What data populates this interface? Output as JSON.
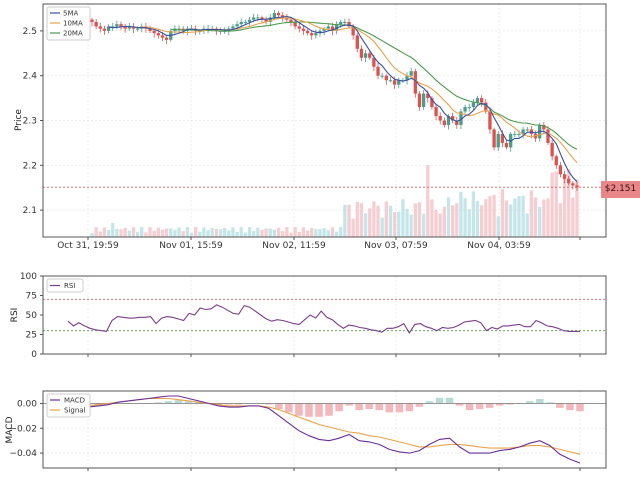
{
  "chart_data": [
    {
      "type": "candlestick",
      "panel": "price",
      "ylabel": "Price",
      "ylim": [
        2.04,
        2.56
      ],
      "yticks": [
        2.1,
        2.2,
        2.3,
        2.4,
        2.5
      ],
      "xticks": [
        "Oct 31, 19:59",
        "Nov 01, 15:59",
        "Nov 02, 11:59",
        "Nov 03, 07:59",
        "Nov 04, 03:59"
      ],
      "legend": [
        "5MA",
        "10MA",
        "20MA"
      ],
      "grid": true,
      "current_price": 2.151,
      "current_price_label": "$2.151",
      "series": [
        {
          "name": "close",
          "values": [
            2.52,
            2.51,
            2.505,
            2.5,
            2.51,
            2.51,
            2.515,
            2.51,
            2.505,
            2.51,
            2.505,
            2.505,
            2.51,
            2.505,
            2.5,
            2.495,
            2.49,
            2.485,
            2.48,
            2.5,
            2.505,
            2.505,
            2.5,
            2.505,
            2.505,
            2.5,
            2.5,
            2.505,
            2.505,
            2.505,
            2.5,
            2.5,
            2.5,
            2.505,
            2.51,
            2.515,
            2.52,
            2.52,
            2.525,
            2.53,
            2.53,
            2.525,
            2.52,
            2.53,
            2.54,
            2.535,
            2.53,
            2.525,
            2.52,
            2.51,
            2.505,
            2.5,
            2.495,
            2.49,
            2.495,
            2.5,
            2.505,
            2.51,
            2.5,
            2.515,
            2.52,
            2.52,
            2.51,
            2.49,
            2.46,
            2.44,
            2.45,
            2.44,
            2.42,
            2.4,
            2.4,
            2.39,
            2.39,
            2.38,
            2.39,
            2.39,
            2.4,
            2.41,
            2.36,
            2.33,
            2.36,
            2.35,
            2.33,
            2.31,
            2.3,
            2.29,
            2.31,
            2.3,
            2.29,
            2.32,
            2.33,
            2.33,
            2.34,
            2.35,
            2.34,
            2.32,
            2.28,
            2.24,
            2.27,
            2.25,
            2.24,
            2.27,
            2.27,
            2.27,
            2.28,
            2.28,
            2.27,
            2.26,
            2.29,
            2.28,
            2.25,
            2.22,
            2.2,
            2.18,
            2.17,
            2.16,
            2.155,
            2.151
          ]
        },
        {
          "name": "5MA",
          "color": "#3b4fa0"
        },
        {
          "name": "10MA",
          "color": "#e8a24a"
        },
        {
          "name": "20MA",
          "color": "#4d9a4d"
        }
      ]
    },
    {
      "type": "line",
      "panel": "rsi",
      "ylabel": "RSI",
      "ylim": [
        0,
        100
      ],
      "yticks": [
        0,
        25,
        50,
        75,
        100
      ],
      "legend": [
        "RSI"
      ],
      "overbought": 70,
      "oversold": 30,
      "series": [
        {
          "name": "RSI",
          "values": [
            42,
            36,
            40,
            36,
            33,
            31,
            30,
            29,
            43,
            48,
            47,
            46,
            46,
            47,
            47,
            48,
            39,
            46,
            48,
            47,
            45,
            43,
            52,
            50,
            59,
            57,
            58,
            63,
            60,
            56,
            52,
            51,
            62,
            60,
            55,
            50,
            45,
            42,
            44,
            43,
            41,
            39,
            38,
            44,
            50,
            46,
            55,
            47,
            44,
            38,
            33,
            37,
            36,
            34,
            33,
            31,
            30,
            28,
            33,
            33,
            35,
            39,
            27,
            38,
            39,
            35,
            33,
            30,
            34,
            33,
            34,
            37,
            41,
            42,
            43,
            40,
            30,
            34,
            32,
            36,
            36,
            37,
            38,
            35,
            35,
            43,
            40,
            36,
            35,
            33,
            30,
            29,
            29,
            29
          ]
        }
      ]
    },
    {
      "type": "line+bar",
      "panel": "macd",
      "ylabel": "MACD",
      "ylim": [
        -0.052,
        0.01
      ],
      "yticks": [
        -0.04,
        -0.02,
        0.0
      ],
      "ytick_labels": [
        "−0.04",
        "−0.02",
        "0.00"
      ],
      "legend": [
        "MACD",
        "Signal"
      ],
      "series": [
        {
          "name": "MACD",
          "values": [
            -0.004,
            -0.004,
            -0.004,
            -0.004,
            -0.003,
            -0.002,
            -0.001,
            0.001,
            0.002,
            0.003,
            0.004,
            0.005,
            0.006,
            0.006,
            0.004,
            0.002,
            0.0,
            -0.002,
            -0.003,
            -0.003,
            -0.002,
            -0.002,
            -0.004,
            -0.01,
            -0.016,
            -0.022,
            -0.026,
            -0.029,
            -0.03,
            -0.028,
            -0.025,
            -0.03,
            -0.031,
            -0.033,
            -0.037,
            -0.039,
            -0.04,
            -0.038,
            -0.033,
            -0.029,
            -0.028,
            -0.035,
            -0.04,
            -0.04,
            -0.04,
            -0.038,
            -0.037,
            -0.035,
            -0.032,
            -0.03,
            -0.034,
            -0.041,
            -0.045,
            -0.048
          ]
        },
        {
          "name": "Signal",
          "values": [
            null,
            null,
            null,
            -0.003,
            -0.002,
            -0.001,
            0.0,
            0.001,
            0.002,
            0.003,
            0.004,
            0.004,
            0.004,
            0.003,
            0.002,
            0.001,
            0.0,
            -0.001,
            -0.002,
            -0.002,
            -0.002,
            -0.002,
            -0.003,
            -0.005,
            -0.008,
            -0.011,
            -0.014,
            -0.017,
            -0.019,
            -0.021,
            -0.023,
            -0.024,
            -0.026,
            -0.027,
            -0.029,
            -0.031,
            -0.033,
            -0.035,
            -0.035,
            -0.034,
            -0.033,
            -0.033,
            -0.034,
            -0.035,
            -0.036,
            -0.036,
            -0.036,
            -0.035,
            -0.034,
            -0.034,
            -0.035,
            -0.037,
            -0.039,
            -0.041
          ]
        }
      ]
    }
  ],
  "price_panel": {
    "ylabel": "Price",
    "legend": [
      {
        "label": "5MA",
        "color": "#3b4fa0"
      },
      {
        "label": "10MA",
        "color": "#e8a24a"
      },
      {
        "label": "20MA",
        "color": "#4d9a4d"
      }
    ],
    "price_tag": "$2.151",
    "colors": {
      "up": "#4a9d8c",
      "down": "#d9534f",
      "vol_up": "#b7e0e3",
      "vol_down": "#f4c2c6",
      "hline": "#e07070"
    }
  },
  "rsi_panel": {
    "ylabel": "RSI",
    "legend": [
      {
        "label": "RSI",
        "color": "#7b3d8b"
      }
    ]
  },
  "macd_panel": {
    "ylabel": "MACD",
    "legend": [
      {
        "label": "MACD",
        "color": "#6a2f9a"
      },
      {
        "label": "Signal",
        "color": "#e8a24a"
      }
    ]
  }
}
